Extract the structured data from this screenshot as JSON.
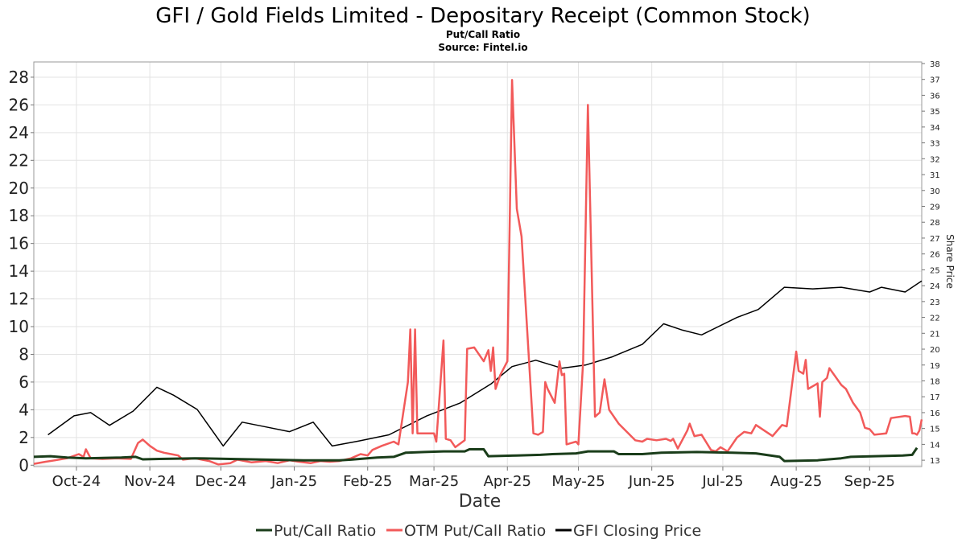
{
  "chart_data": {
    "type": "line",
    "title": "GFI / Gold Fields Limited - Depositary Receipt (Common Stock)",
    "subtitle": "Put/Call Ratio",
    "source": "Source: Fintel.io",
    "xlabel": "Date",
    "ylabel_right": "Share Price",
    "x_range": [
      "2024-09-13",
      "2025-09-23"
    ],
    "x_ticks": [
      {
        "date": "2024-10-01",
        "label": "Oct-24"
      },
      {
        "date": "2024-11-01",
        "label": "Nov-24"
      },
      {
        "date": "2024-12-01",
        "label": "Dec-24"
      },
      {
        "date": "2025-01-01",
        "label": "Jan-25"
      },
      {
        "date": "2025-02-01",
        "label": "Feb-25"
      },
      {
        "date": "2025-03-01",
        "label": "Mar-25"
      },
      {
        "date": "2025-04-01",
        "label": "Apr-25"
      },
      {
        "date": "2025-05-01",
        "label": "May-25"
      },
      {
        "date": "2025-06-01",
        "label": "Jun-25"
      },
      {
        "date": "2025-07-01",
        "label": "Jul-25"
      },
      {
        "date": "2025-08-01",
        "label": "Aug-25"
      },
      {
        "date": "2025-09-01",
        "label": "Sep-25"
      }
    ],
    "ylim_left": [
      -0.1,
      29.1
    ],
    "yticks_left": [
      0,
      2,
      4,
      6,
      8,
      10,
      12,
      14,
      16,
      18,
      20,
      22,
      24,
      26,
      28
    ],
    "ylim_right": [
      12.6,
      38.1
    ],
    "yticks_right": [
      13,
      14,
      15,
      16,
      17,
      18,
      19,
      20,
      21,
      22,
      23,
      24,
      25,
      26,
      27,
      28,
      29,
      30,
      31,
      32,
      33,
      34,
      35,
      36,
      37,
      38
    ],
    "grid": true,
    "legend_position": "bottom-center",
    "series": [
      {
        "name": "Put/Call Ratio",
        "axis": "left",
        "color": "#1a3d1a",
        "points": [
          [
            "2024-09-13",
            0.6
          ],
          [
            "2024-09-20",
            0.65
          ],
          [
            "2024-09-27",
            0.55
          ],
          [
            "2024-10-05",
            0.5
          ],
          [
            "2024-10-20",
            0.55
          ],
          [
            "2024-10-26",
            0.6
          ],
          [
            "2024-10-29",
            0.42
          ],
          [
            "2024-11-05",
            0.45
          ],
          [
            "2024-11-20",
            0.5
          ],
          [
            "2024-12-05",
            0.45
          ],
          [
            "2024-12-20",
            0.4
          ],
          [
            "2025-01-05",
            0.35
          ],
          [
            "2025-01-20",
            0.35
          ],
          [
            "2025-01-25",
            0.4
          ],
          [
            "2025-02-05",
            0.55
          ],
          [
            "2025-02-12",
            0.6
          ],
          [
            "2025-02-17",
            0.9
          ],
          [
            "2025-02-25",
            0.95
          ],
          [
            "2025-03-05",
            1.0
          ],
          [
            "2025-03-14",
            1.0
          ],
          [
            "2025-03-16",
            1.15
          ],
          [
            "2025-03-22",
            1.15
          ],
          [
            "2025-03-24",
            0.65
          ],
          [
            "2025-04-05",
            0.7
          ],
          [
            "2025-04-15",
            0.75
          ],
          [
            "2025-04-20",
            0.8
          ],
          [
            "2025-04-30",
            0.85
          ],
          [
            "2025-05-05",
            1.0
          ],
          [
            "2025-05-16",
            1.0
          ],
          [
            "2025-05-18",
            0.8
          ],
          [
            "2025-05-28",
            0.8
          ],
          [
            "2025-06-05",
            0.9
          ],
          [
            "2025-06-20",
            0.95
          ],
          [
            "2025-07-05",
            0.9
          ],
          [
            "2025-07-15",
            0.85
          ],
          [
            "2025-07-25",
            0.6
          ],
          [
            "2025-07-27",
            0.3
          ],
          [
            "2025-08-10",
            0.35
          ],
          [
            "2025-08-20",
            0.5
          ],
          [
            "2025-08-24",
            0.6
          ],
          [
            "2025-09-15",
            0.7
          ],
          [
            "2025-09-19",
            0.75
          ],
          [
            "2025-09-21",
            1.25
          ]
        ]
      },
      {
        "name": "OTM Put/Call Ratio",
        "axis": "left",
        "color": "#f25a5a",
        "points": [
          [
            "2024-09-13",
            0.1
          ],
          [
            "2024-09-18",
            0.25
          ],
          [
            "2024-09-22",
            0.35
          ],
          [
            "2024-09-27",
            0.5
          ],
          [
            "2024-10-02",
            0.8
          ],
          [
            "2024-10-04",
            0.6
          ],
          [
            "2024-10-05",
            1.15
          ],
          [
            "2024-10-07",
            0.5
          ],
          [
            "2024-10-12",
            0.45
          ],
          [
            "2024-10-18",
            0.5
          ],
          [
            "2024-10-24",
            0.45
          ],
          [
            "2024-10-27",
            1.6
          ],
          [
            "2024-10-29",
            1.85
          ],
          [
            "2024-11-01",
            1.4
          ],
          [
            "2024-11-04",
            1.05
          ],
          [
            "2024-11-07",
            0.9
          ],
          [
            "2024-11-10",
            0.8
          ],
          [
            "2024-11-13",
            0.7
          ],
          [
            "2024-11-15",
            0.4
          ],
          [
            "2024-11-20",
            0.5
          ],
          [
            "2024-11-26",
            0.3
          ],
          [
            "2024-11-30",
            0.05
          ],
          [
            "2024-12-05",
            0.15
          ],
          [
            "2024-12-08",
            0.4
          ],
          [
            "2024-12-14",
            0.2
          ],
          [
            "2024-12-20",
            0.3
          ],
          [
            "2024-12-25",
            0.15
          ],
          [
            "2024-12-30",
            0.35
          ],
          [
            "2025-01-03",
            0.25
          ],
          [
            "2025-01-08",
            0.15
          ],
          [
            "2025-01-12",
            0.3
          ],
          [
            "2025-01-16",
            0.25
          ],
          [
            "2025-01-20",
            0.3
          ],
          [
            "2025-01-25",
            0.5
          ],
          [
            "2025-01-29",
            0.8
          ],
          [
            "2025-02-01",
            0.7
          ],
          [
            "2025-02-03",
            1.1
          ],
          [
            "2025-02-07",
            1.4
          ],
          [
            "2025-02-12",
            1.7
          ],
          [
            "2025-02-14",
            1.5
          ],
          [
            "2025-02-18",
            6.0
          ],
          [
            "2025-02-19",
            9.8
          ],
          [
            "2025-02-20",
            2.3
          ],
          [
            "2025-02-21",
            9.8
          ],
          [
            "2025-02-22",
            2.3
          ],
          [
            "2025-03-01",
            2.3
          ],
          [
            "2025-03-02",
            1.7
          ],
          [
            "2025-03-05",
            9.0
          ],
          [
            "2025-03-06",
            1.9
          ],
          [
            "2025-03-08",
            1.8
          ],
          [
            "2025-03-10",
            1.3
          ],
          [
            "2025-03-14",
            1.8
          ],
          [
            "2025-03-15",
            8.4
          ],
          [
            "2025-03-18",
            8.5
          ],
          [
            "2025-03-22",
            7.5
          ],
          [
            "2025-03-24",
            8.3
          ],
          [
            "2025-03-25",
            6.8
          ],
          [
            "2025-03-26",
            8.5
          ],
          [
            "2025-03-27",
            5.5
          ],
          [
            "2025-03-29",
            6.5
          ],
          [
            "2025-04-01",
            7.5
          ],
          [
            "2025-04-03",
            27.8
          ],
          [
            "2025-04-05",
            18.5
          ],
          [
            "2025-04-07",
            16.5
          ],
          [
            "2025-04-12",
            2.3
          ],
          [
            "2025-04-14",
            2.2
          ],
          [
            "2025-04-16",
            2.4
          ],
          [
            "2025-04-17",
            6.0
          ],
          [
            "2025-04-18",
            5.5
          ],
          [
            "2025-04-21",
            4.5
          ],
          [
            "2025-04-23",
            7.5
          ],
          [
            "2025-04-24",
            6.5
          ],
          [
            "2025-04-25",
            6.6
          ],
          [
            "2025-04-26",
            1.5
          ],
          [
            "2025-04-28",
            1.6
          ],
          [
            "2025-04-30",
            1.7
          ],
          [
            "2025-05-01",
            1.5
          ],
          [
            "2025-05-03",
            7.5
          ],
          [
            "2025-05-05",
            26.0
          ],
          [
            "2025-05-08",
            3.5
          ],
          [
            "2025-05-10",
            3.8
          ],
          [
            "2025-05-12",
            6.2
          ],
          [
            "2025-05-14",
            4.0
          ],
          [
            "2025-05-18",
            3.0
          ],
          [
            "2025-05-25",
            1.8
          ],
          [
            "2025-05-28",
            1.7
          ],
          [
            "2025-05-30",
            1.9
          ],
          [
            "2025-06-03",
            1.8
          ],
          [
            "2025-06-07",
            1.9
          ],
          [
            "2025-06-09",
            1.75
          ],
          [
            "2025-06-10",
            1.9
          ],
          [
            "2025-06-12",
            1.2
          ],
          [
            "2025-06-16",
            2.5
          ],
          [
            "2025-06-17",
            3.0
          ],
          [
            "2025-06-19",
            2.1
          ],
          [
            "2025-06-22",
            2.2
          ],
          [
            "2025-06-26",
            1.1
          ],
          [
            "2025-06-28",
            1.0
          ],
          [
            "2025-06-30",
            1.3
          ],
          [
            "2025-07-03",
            1.0
          ],
          [
            "2025-07-07",
            2.0
          ],
          [
            "2025-07-10",
            2.4
          ],
          [
            "2025-07-13",
            2.3
          ],
          [
            "2025-07-15",
            2.9
          ],
          [
            "2025-07-22",
            2.1
          ],
          [
            "2025-07-26",
            2.9
          ],
          [
            "2025-07-28",
            2.8
          ],
          [
            "2025-08-01",
            8.2
          ],
          [
            "2025-08-02",
            6.8
          ],
          [
            "2025-08-04",
            6.6
          ],
          [
            "2025-08-05",
            7.6
          ],
          [
            "2025-08-06",
            5.5
          ],
          [
            "2025-08-09",
            5.8
          ],
          [
            "2025-08-10",
            5.9
          ],
          [
            "2025-08-11",
            3.5
          ],
          [
            "2025-08-12",
            6.0
          ],
          [
            "2025-08-14",
            6.3
          ],
          [
            "2025-08-15",
            7.0
          ],
          [
            "2025-08-20",
            5.8
          ],
          [
            "2025-08-22",
            5.5
          ],
          [
            "2025-08-25",
            4.5
          ],
          [
            "2025-08-28",
            3.8
          ],
          [
            "2025-08-30",
            2.7
          ],
          [
            "2025-09-01",
            2.6
          ],
          [
            "2025-09-03",
            2.2
          ],
          [
            "2025-09-08",
            2.3
          ],
          [
            "2025-09-10",
            3.4
          ],
          [
            "2025-09-14",
            3.5
          ],
          [
            "2025-09-16",
            3.55
          ],
          [
            "2025-09-18",
            3.5
          ],
          [
            "2025-09-19",
            2.3
          ],
          [
            "2025-09-20",
            2.3
          ],
          [
            "2025-09-21",
            2.2
          ],
          [
            "2025-09-22",
            2.5
          ],
          [
            "2025-09-23",
            3.3
          ]
        ]
      },
      {
        "name": "GFI Closing Price",
        "axis": "right",
        "color": "#000000",
        "points": [
          [
            "2024-09-19",
            14.6
          ],
          [
            "2024-09-30",
            15.8
          ],
          [
            "2024-10-07",
            16.0
          ],
          [
            "2024-10-15",
            15.2
          ],
          [
            "2024-10-25",
            16.1
          ],
          [
            "2024-11-04",
            17.6
          ],
          [
            "2024-11-11",
            17.1
          ],
          [
            "2024-11-21",
            16.2
          ],
          [
            "2024-12-02",
            13.9
          ],
          [
            "2024-12-10",
            15.4
          ],
          [
            "2024-12-20",
            15.1
          ],
          [
            "2024-12-30",
            14.8
          ],
          [
            "2025-01-09",
            15.4
          ],
          [
            "2025-01-17",
            13.9
          ],
          [
            "2025-01-28",
            14.2
          ],
          [
            "2025-02-10",
            14.6
          ],
          [
            "2025-02-26",
            15.8
          ],
          [
            "2025-03-12",
            16.6
          ],
          [
            "2025-03-25",
            17.8
          ],
          [
            "2025-04-03",
            18.9
          ],
          [
            "2025-04-13",
            19.3
          ],
          [
            "2025-04-24",
            18.8
          ],
          [
            "2025-05-04",
            19.0
          ],
          [
            "2025-05-15",
            19.5
          ],
          [
            "2025-05-28",
            20.3
          ],
          [
            "2025-06-06",
            21.6
          ],
          [
            "2025-06-14",
            21.2
          ],
          [
            "2025-06-22",
            20.9
          ],
          [
            "2025-07-07",
            22.0
          ],
          [
            "2025-07-16",
            22.5
          ],
          [
            "2025-07-27",
            23.9
          ],
          [
            "2025-08-08",
            23.8
          ],
          [
            "2025-08-20",
            23.9
          ],
          [
            "2025-09-01",
            23.6
          ],
          [
            "2025-09-06",
            23.9
          ],
          [
            "2025-09-16",
            23.6
          ],
          [
            "2025-09-23",
            24.3
          ]
        ]
      }
    ]
  }
}
